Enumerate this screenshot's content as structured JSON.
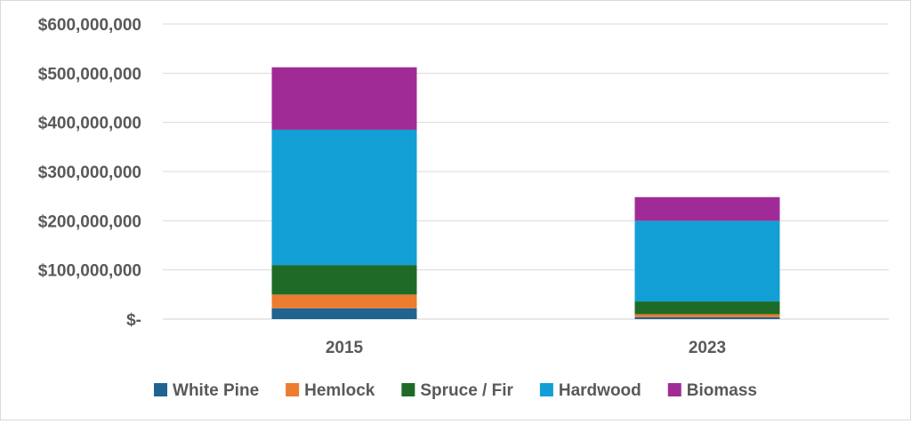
{
  "chart_data": {
    "type": "bar",
    "stacked": true,
    "categories": [
      "2015",
      "2023"
    ],
    "series": [
      {
        "name": "White Pine",
        "color": "#1f6391",
        "values": [
          22000000,
          4000000
        ]
      },
      {
        "name": "Hemlock",
        "color": "#ec7c30",
        "values": [
          28000000,
          6000000
        ]
      },
      {
        "name": "Spruce / Fir",
        "color": "#1e6b28",
        "values": [
          60000000,
          26000000
        ]
      },
      {
        "name": "Hardwood",
        "color": "#129fd6",
        "values": [
          275000000,
          164000000
        ]
      },
      {
        "name": "Biomass",
        "color": "#a02b96",
        "values": [
          127000000,
          48000000
        ]
      }
    ],
    "ylim": [
      0,
      600000000
    ],
    "yticks": [
      {
        "value": 0,
        "label": "$-"
      },
      {
        "value": 100000000,
        "label": "$100,000,000"
      },
      {
        "value": 200000000,
        "label": "$200,000,000"
      },
      {
        "value": 300000000,
        "label": "$300,000,000"
      },
      {
        "value": 400000000,
        "label": "$400,000,000"
      },
      {
        "value": 500000000,
        "label": "$500,000,000"
      },
      {
        "value": 600000000,
        "label": "$600,000,000"
      }
    ],
    "grid": true,
    "legend": "bottom",
    "title": "",
    "xlabel": "",
    "ylabel": ""
  }
}
